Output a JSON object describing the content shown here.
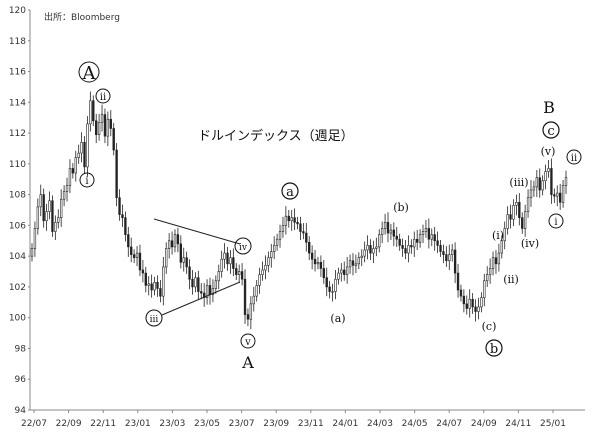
{
  "chart_data": {
    "type": "candlestick",
    "title": "ドルインデックス（週足）",
    "source": "出所：Bloomberg",
    "ylim": [
      94,
      120
    ],
    "yticks": [
      94,
      96,
      98,
      100,
      102,
      104,
      106,
      108,
      110,
      112,
      114,
      116,
      118,
      120
    ],
    "xticks": [
      "22/07",
      "22/09",
      "22/11",
      "23/01",
      "23/03",
      "23/05",
      "23/07",
      "23/09",
      "23/11",
      "24/01",
      "24/03",
      "24/05",
      "24/07",
      "24/09",
      "24/11",
      "25/01"
    ],
    "grid": false,
    "xlabel": "",
    "ylabel": "",
    "closes": [
      104.5,
      105.8,
      107.2,
      108.0,
      106.3,
      106.9,
      107.6,
      105.6,
      106.2,
      106.5,
      107.7,
      108.2,
      108.6,
      109.7,
      109.4,
      110.4,
      110.7,
      111.4,
      109.8,
      112.6,
      114.1,
      112.8,
      111.9,
      112.7,
      113.2,
      111.8,
      112.9,
      112.3,
      110.9,
      107.8,
      106.7,
      106.5,
      105.4,
      104.6,
      104.1,
      103.9,
      104.2,
      103.1,
      102.9,
      102.1,
      102.2,
      101.8,
      102.3,
      101.9,
      101.4,
      103.3,
      104.5,
      105.0,
      104.6,
      105.4,
      104.8,
      103.6,
      103.9,
      103.3,
      102.5,
      102.0,
      102.6,
      101.7,
      101.6,
      101.3,
      102.1,
      101.5,
      101.9,
      102.4,
      103.0,
      103.8,
      104.2,
      103.5,
      103.9,
      103.2,
      102.8,
      103.0,
      102.5,
      100.2,
      99.9,
      100.9,
      101.4,
      102.1,
      102.8,
      103.1,
      103.4,
      103.9,
      104.3,
      104.7,
      105.1,
      105.6,
      106.0,
      106.6,
      106.3,
      106.5,
      106.2,
      106.1,
      105.6,
      105.5,
      104.9,
      104.2,
      103.8,
      103.5,
      103.6,
      103.2,
      102.6,
      102.0,
      101.7,
      101.7,
      102.5,
      102.9,
      103.1,
      102.8,
      103.3,
      103.7,
      103.4,
      103.5,
      103.9,
      104.0,
      104.4,
      104.7,
      104.2,
      104.5,
      104.6,
      105.4,
      105.8,
      106.2,
      105.5,
      105.7,
      105.3,
      105.1,
      104.7,
      104.5,
      104.2,
      104.7,
      104.6,
      105.1,
      104.9,
      105.4,
      105.6,
      105.8,
      105.1,
      105.4,
      105.0,
      104.7,
      104.3,
      104.1,
      103.7,
      104.1,
      104.4,
      102.9,
      101.8,
      101.4,
      100.9,
      100.6,
      101.2,
      100.7,
      100.4,
      100.7,
      101.3,
      102.4,
      102.8,
      103.2,
      103.9,
      103.5,
      104.2,
      105.0,
      105.8,
      106.7,
      106.4,
      107.3,
      107.5,
      106.5,
      105.8,
      106.9,
      107.8,
      108.3,
      108.5,
      109.1,
      108.3,
      108.9,
      109.5,
      109.7,
      108.0,
      107.9,
      108.1,
      107.5,
      108.6,
      109.1
    ]
  },
  "annotations": {
    "big_A": "A",
    "i_1": "i",
    "ii_1": "ii",
    "iii_1": "iii",
    "iv_1": "iv",
    "v_1": "v",
    "A_low": "A",
    "a_wave": "a",
    "a_paren": "(a)",
    "b_paren": "(b)",
    "c_paren": "(c)",
    "b_wave": "b",
    "i_paren": "(i)",
    "ii_paren": "(ii)",
    "iii_paren": "(iii)",
    "iv_paren": "(iv)",
    "v_paren": "(v)",
    "B_label": "B",
    "c_wave": "c",
    "i_2": "i",
    "ii_2": "ii"
  }
}
